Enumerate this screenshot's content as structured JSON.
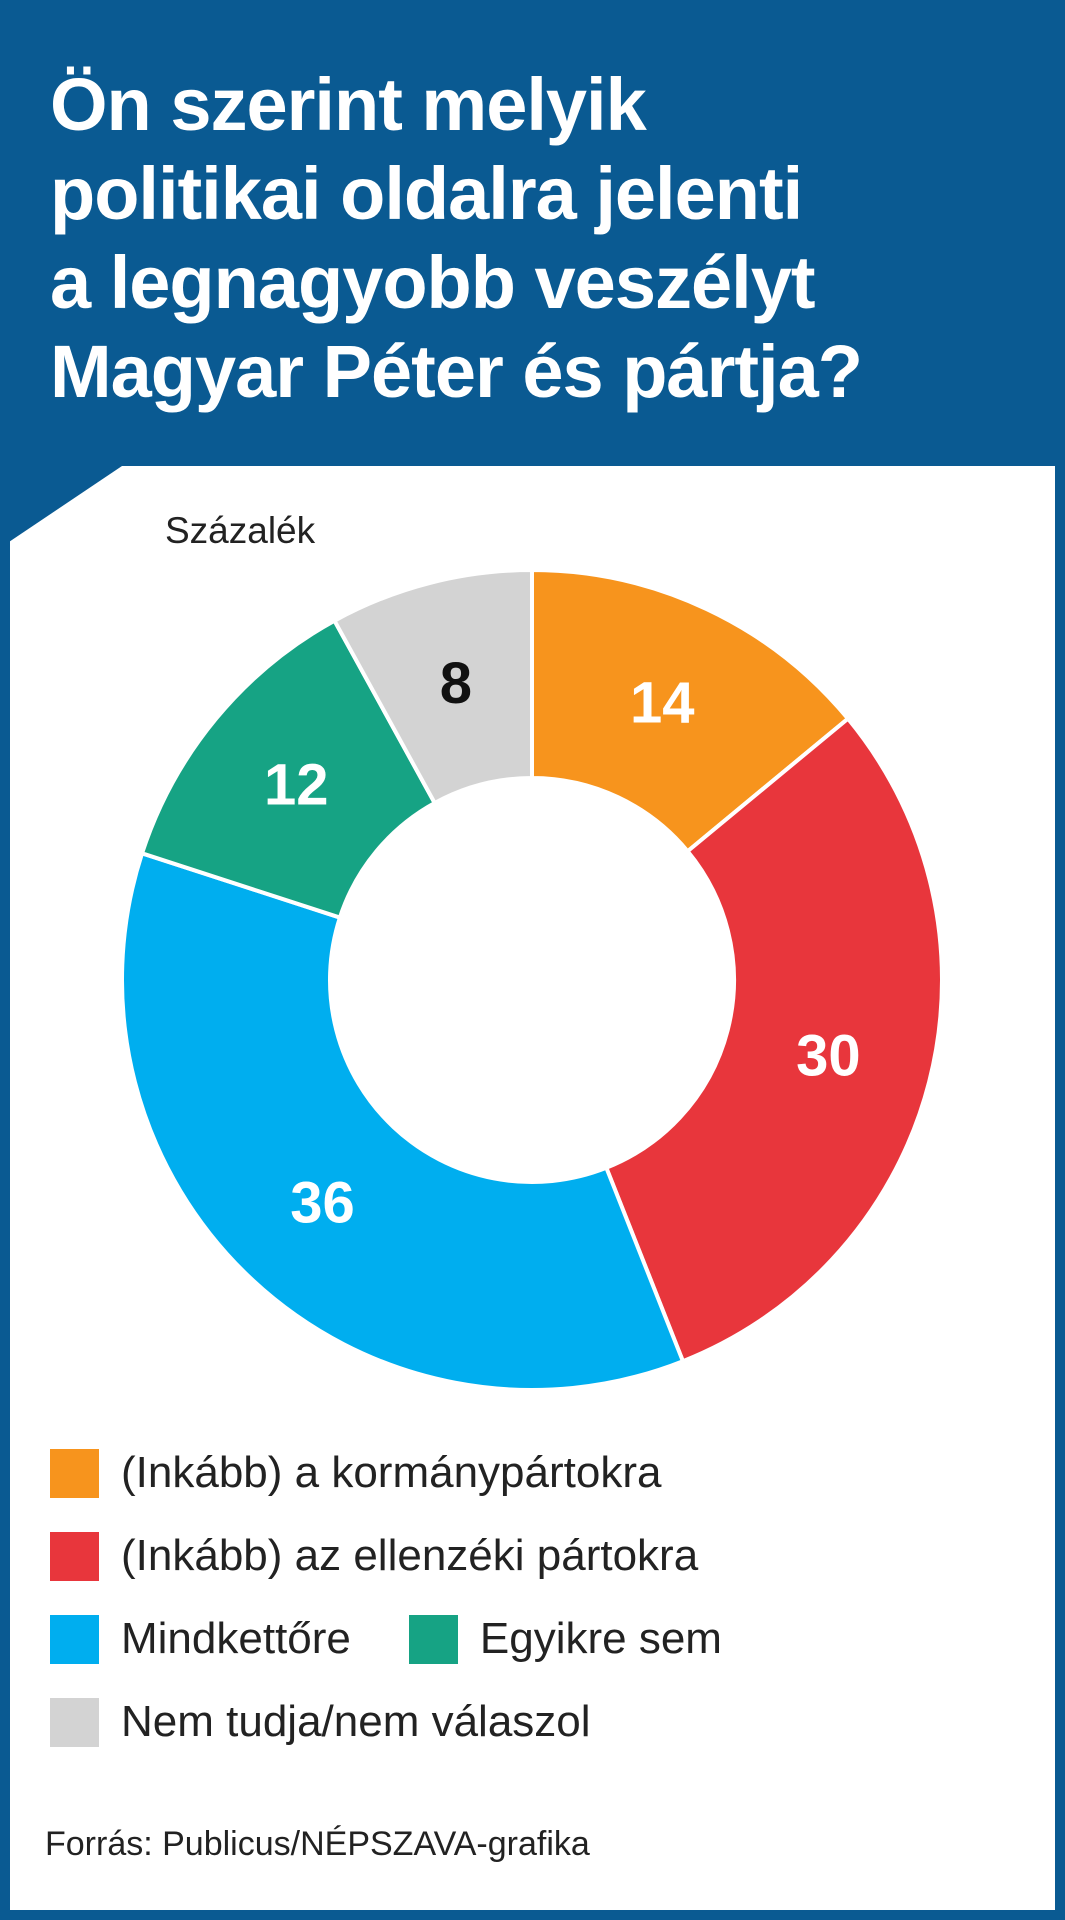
{
  "title_lines": [
    "Ön szerint melyik",
    "politikai oldalra jelenti",
    "a legnagyobb veszélyt",
    "Magyar Péter és pártja?"
  ],
  "unit_label": "Százalék",
  "source": "Forrás: Publicus/NÉPSZAVA-grafika",
  "colors": {
    "header": "#0a5a92",
    "orange": "#f7941d",
    "red": "#e8363c",
    "blue": "#00aeef",
    "green": "#16a384",
    "gray": "#d3d3d3"
  },
  "chart_data": {
    "type": "pie",
    "donut": true,
    "title": "Ön szerint melyik politikai oldalra jelenti a legnagyobb veszélyt Magyar Péter és pártja?",
    "unit": "Százalék",
    "legend_position": "bottom",
    "slices": [
      {
        "name": "(Inkább) a kormánypártokra",
        "value": 14,
        "display": "14",
        "color": "#f7941d",
        "label_color": "#ffffff"
      },
      {
        "name": "(Inkább) az ellenzéki pártokra",
        "value": 30,
        "display": "30",
        "color": "#e8363c",
        "label_color": "#ffffff"
      },
      {
        "name": "Mindkettőre",
        "value": 36,
        "display": "36",
        "color": "#00aeef",
        "label_color": "#ffffff"
      },
      {
        "name": "Egyikre sem",
        "value": 12,
        "display": "12",
        "color": "#16a384",
        "label_color": "#ffffff"
      },
      {
        "name": "Nem tudja/nem válaszol",
        "value": 8,
        "display": "8",
        "color": "#d3d3d3",
        "label_color": "#111111"
      }
    ]
  },
  "legend": {
    "rows": [
      [
        0
      ],
      [
        1
      ],
      [
        2,
        3
      ],
      [
        4
      ]
    ]
  }
}
